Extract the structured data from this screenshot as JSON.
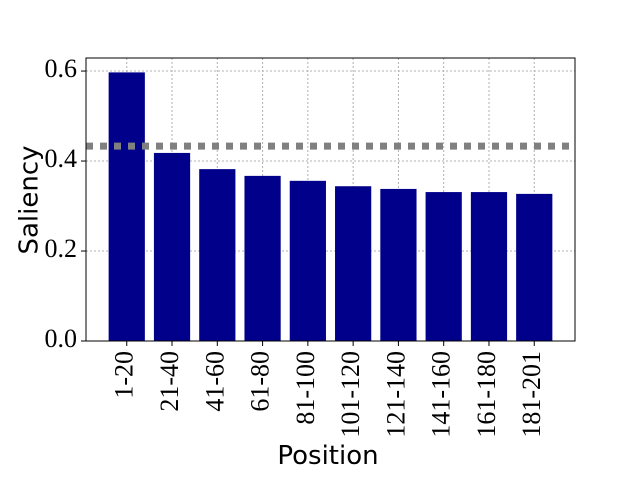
{
  "chart_data": {
    "type": "bar",
    "xlabel": "Position",
    "ylabel": "Saliency",
    "categories": [
      "1-20",
      "21-40",
      "41-60",
      "61-80",
      "81-100",
      "101-120",
      "121-140",
      "141-160",
      "161-180",
      "181-201"
    ],
    "values": [
      0.597,
      0.418,
      0.382,
      0.367,
      0.356,
      0.344,
      0.338,
      0.331,
      0.331,
      0.327
    ],
    "color": "#00008b",
    "reference_line": 0.433,
    "reference_color": "#808080",
    "ylim": [
      0,
      0.629
    ],
    "yticks": [
      {
        "value": 0,
        "label": "0.0"
      },
      0.2,
      0.4,
      0.6
    ],
    "grid": true
  }
}
